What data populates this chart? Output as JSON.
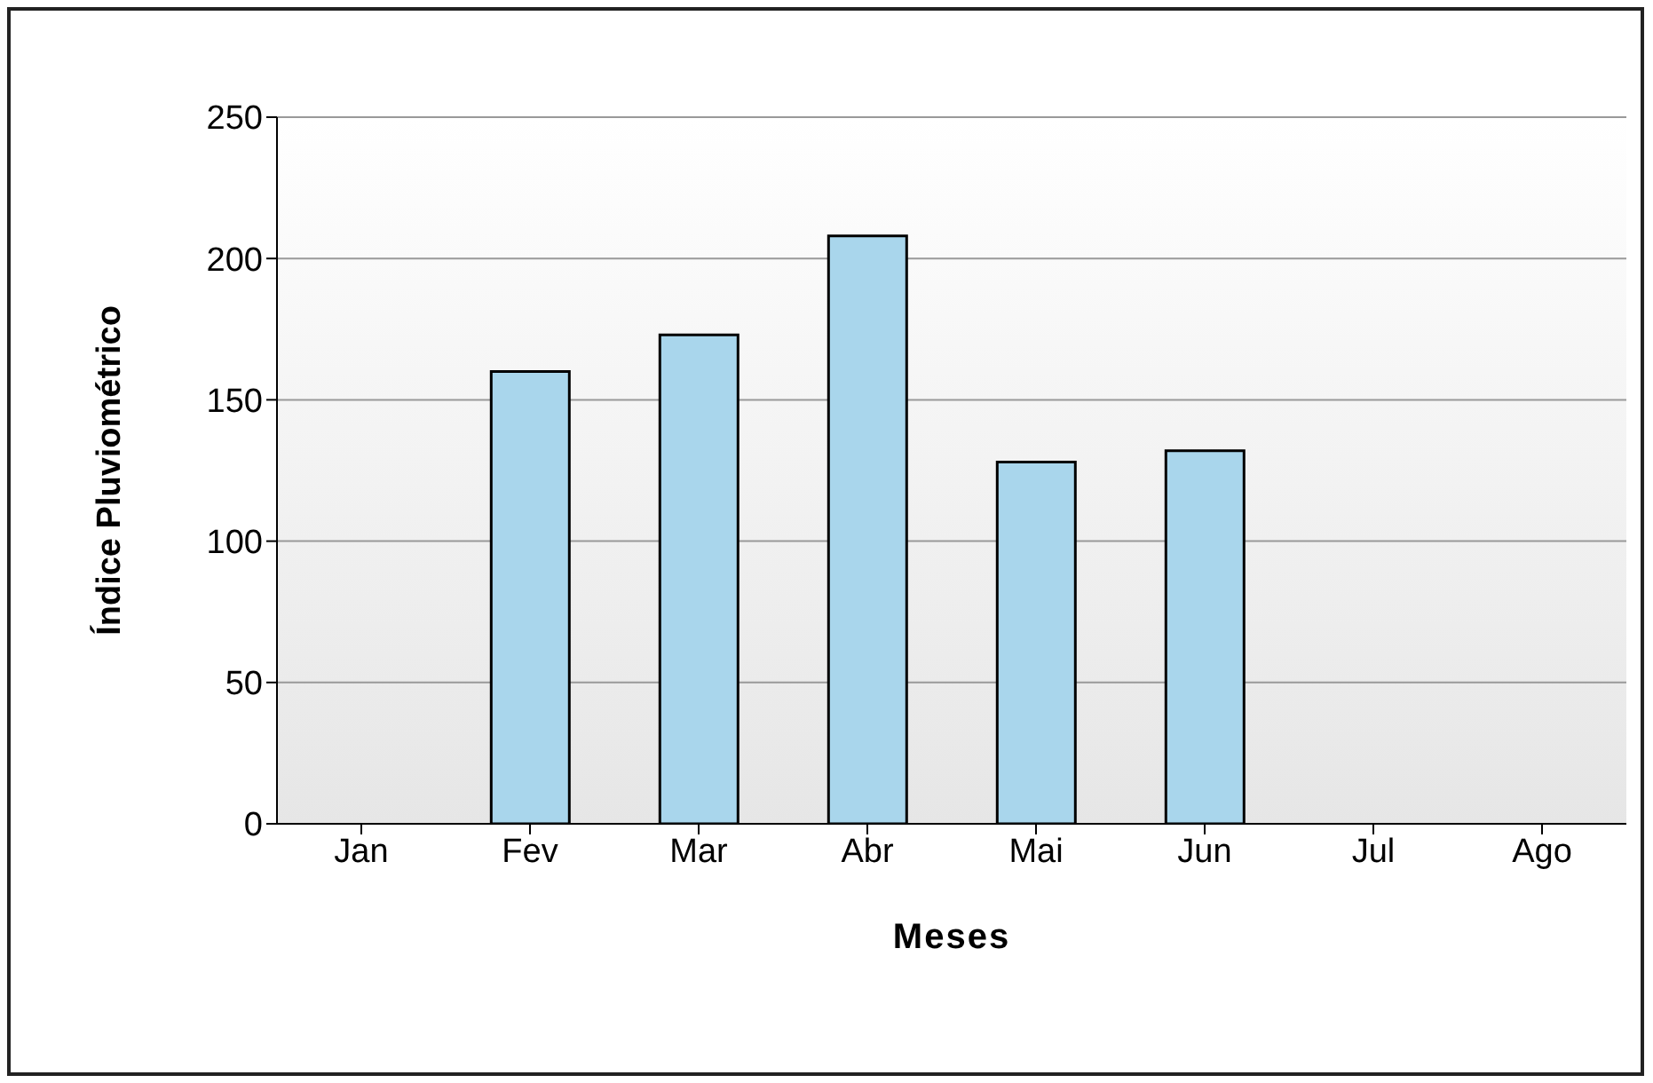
{
  "chart_data": {
    "type": "bar",
    "xlabel": "Meses",
    "ylabel": "Índice Pluviométrico",
    "categories": [
      "Jan",
      "Fev",
      "Mar",
      "Abr",
      "Mai",
      "Jun",
      "Jul",
      "Ago"
    ],
    "values": [
      null,
      160,
      173,
      208,
      128,
      132,
      null,
      null
    ],
    "color": "#a9d6ec",
    "ylim": [
      0,
      250
    ],
    "yticks": [
      0,
      50,
      100,
      150,
      200,
      250
    ],
    "grid": "y"
  }
}
